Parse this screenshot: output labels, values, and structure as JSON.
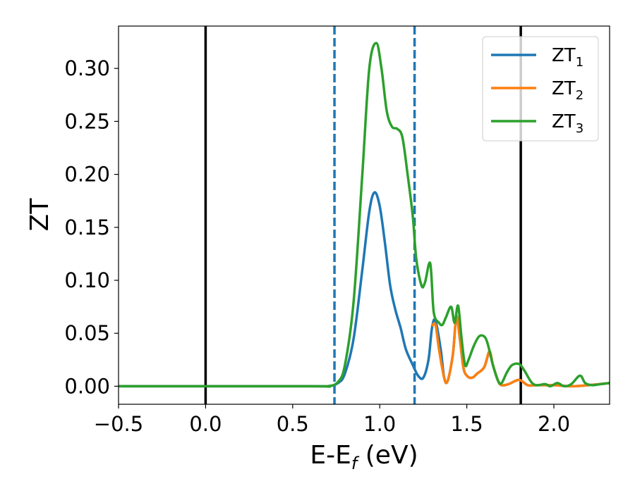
{
  "chart_data": {
    "type": "line",
    "xlabel": {
      "main": "E-E",
      "sub": "f",
      "tail": " (eV)"
    },
    "ylabel": "ZT",
    "xlim": [
      -0.5,
      2.32
    ],
    "ylim": [
      -0.017,
      0.34
    ],
    "x_ticks": [
      -0.5,
      0.0,
      0.5,
      1.0,
      1.5,
      2.0
    ],
    "x_tick_labels": [
      "−0.5",
      "0.0",
      "0.5",
      "1.0",
      "1.5",
      "2.0"
    ],
    "y_ticks": [
      0.0,
      0.05,
      0.1,
      0.15,
      0.2,
      0.25,
      0.3
    ],
    "y_tick_labels": [
      "0.00",
      "0.05",
      "0.10",
      "0.15",
      "0.20",
      "0.25",
      "0.30"
    ],
    "grid": false,
    "legend_position": "top-right",
    "vertical_lines": [
      {
        "x": 0.0,
        "style": "solid",
        "color": "#000000"
      },
      {
        "x": 1.81,
        "style": "solid",
        "color": "#000000"
      },
      {
        "x": 0.74,
        "style": "dashed",
        "color": "#1f77b4"
      },
      {
        "x": 1.2,
        "style": "dashed",
        "color": "#1f77b4"
      }
    ],
    "series": [
      {
        "name": "ZT",
        "sub": "1",
        "color": "#1f77b4",
        "points": [
          [
            -0.5,
            0
          ],
          [
            0.6,
            0
          ],
          [
            0.7,
            0
          ],
          [
            0.76,
            0.003
          ],
          [
            0.8,
            0.012
          ],
          [
            0.85,
            0.045
          ],
          [
            0.9,
            0.11
          ],
          [
            0.94,
            0.165
          ],
          [
            0.97,
            0.183
          ],
          [
            1.0,
            0.17
          ],
          [
            1.03,
            0.135
          ],
          [
            1.06,
            0.095
          ],
          [
            1.09,
            0.072
          ],
          [
            1.12,
            0.055
          ],
          [
            1.15,
            0.035
          ],
          [
            1.19,
            0.02
          ],
          [
            1.22,
            0.01
          ],
          [
            1.25,
            0.008
          ],
          [
            1.28,
            0.025
          ],
          [
            1.3,
            0.055
          ],
          [
            1.32,
            0.062
          ],
          [
            1.35,
            0.035
          ],
          [
            1.37,
            0.008
          ],
          [
            1.39,
            0.005
          ],
          [
            1.42,
            0.03
          ],
          [
            1.44,
            0.065
          ],
          [
            1.46,
            0.045
          ],
          [
            1.48,
            0.018
          ],
          [
            1.5,
            0.01
          ],
          [
            1.53,
            0.008
          ],
          [
            1.56,
            0.012
          ],
          [
            1.6,
            0.018
          ],
          [
            1.63,
            0.032
          ],
          [
            1.65,
            0.02
          ],
          [
            1.68,
            0.005
          ],
          [
            1.7,
            0.001
          ],
          [
            1.74,
            0.002
          ],
          [
            1.8,
            0.006
          ],
          [
            1.85,
            0.001
          ],
          [
            1.9,
            0.001
          ],
          [
            2.0,
            0.001
          ],
          [
            2.1,
            0.0
          ],
          [
            2.2,
            0.001
          ],
          [
            2.32,
            0.003
          ]
        ]
      },
      {
        "name": "ZT",
        "sub": "2",
        "color": "#ff7f0e",
        "points": [
          [
            1.3,
            0.057
          ],
          [
            1.32,
            0.058
          ],
          [
            1.34,
            0.035
          ],
          [
            1.37,
            0.008
          ],
          [
            1.39,
            0.005
          ],
          [
            1.42,
            0.03
          ],
          [
            1.44,
            0.066
          ],
          [
            1.46,
            0.045
          ],
          [
            1.48,
            0.018
          ],
          [
            1.5,
            0.01
          ],
          [
            1.53,
            0.008
          ],
          [
            1.56,
            0.012
          ],
          [
            1.6,
            0.018
          ],
          [
            1.63,
            0.033
          ],
          [
            1.65,
            0.02
          ],
          [
            1.68,
            0.005
          ],
          [
            1.7,
            0.001
          ],
          [
            1.74,
            0.002
          ],
          [
            1.8,
            0.006
          ],
          [
            1.85,
            0.001
          ],
          [
            1.9,
            0.001
          ],
          [
            2.0,
            0.001
          ],
          [
            2.1,
            0.0
          ],
          [
            2.2,
            0.001
          ],
          [
            2.32,
            0.003
          ]
        ]
      },
      {
        "name": "ZT",
        "sub": "3",
        "color": "#2ca02c",
        "points": [
          [
            -0.5,
            0
          ],
          [
            0.6,
            0
          ],
          [
            0.7,
            0
          ],
          [
            0.76,
            0.004
          ],
          [
            0.8,
            0.02
          ],
          [
            0.85,
            0.08
          ],
          [
            0.9,
            0.2
          ],
          [
            0.94,
            0.3
          ],
          [
            0.98,
            0.324
          ],
          [
            1.01,
            0.3
          ],
          [
            1.04,
            0.26
          ],
          [
            1.07,
            0.245
          ],
          [
            1.1,
            0.243
          ],
          [
            1.13,
            0.235
          ],
          [
            1.16,
            0.2
          ],
          [
            1.19,
            0.16
          ],
          [
            1.21,
            0.12
          ],
          [
            1.24,
            0.095
          ],
          [
            1.26,
            0.098
          ],
          [
            1.29,
            0.116
          ],
          [
            1.31,
            0.07
          ],
          [
            1.34,
            0.06
          ],
          [
            1.36,
            0.058
          ],
          [
            1.38,
            0.065
          ],
          [
            1.41,
            0.075
          ],
          [
            1.43,
            0.06
          ],
          [
            1.45,
            0.076
          ],
          [
            1.47,
            0.045
          ],
          [
            1.49,
            0.02
          ],
          [
            1.51,
            0.025
          ],
          [
            1.54,
            0.038
          ],
          [
            1.57,
            0.047
          ],
          [
            1.6,
            0.047
          ],
          [
            1.62,
            0.04
          ],
          [
            1.65,
            0.02
          ],
          [
            1.68,
            0.005
          ],
          [
            1.7,
            0.003
          ],
          [
            1.73,
            0.013
          ],
          [
            1.76,
            0.02
          ],
          [
            1.8,
            0.021
          ],
          [
            1.83,
            0.015
          ],
          [
            1.87,
            0.004
          ],
          [
            1.9,
            0.001
          ],
          [
            1.95,
            0.002
          ],
          [
            1.98,
            0.0
          ],
          [
            2.02,
            0.003
          ],
          [
            2.06,
            0.0
          ],
          [
            2.1,
            0.002
          ],
          [
            2.15,
            0.01
          ],
          [
            2.18,
            0.003
          ],
          [
            2.22,
            0.001
          ],
          [
            2.27,
            0.002
          ],
          [
            2.32,
            0.003
          ]
        ]
      }
    ]
  }
}
